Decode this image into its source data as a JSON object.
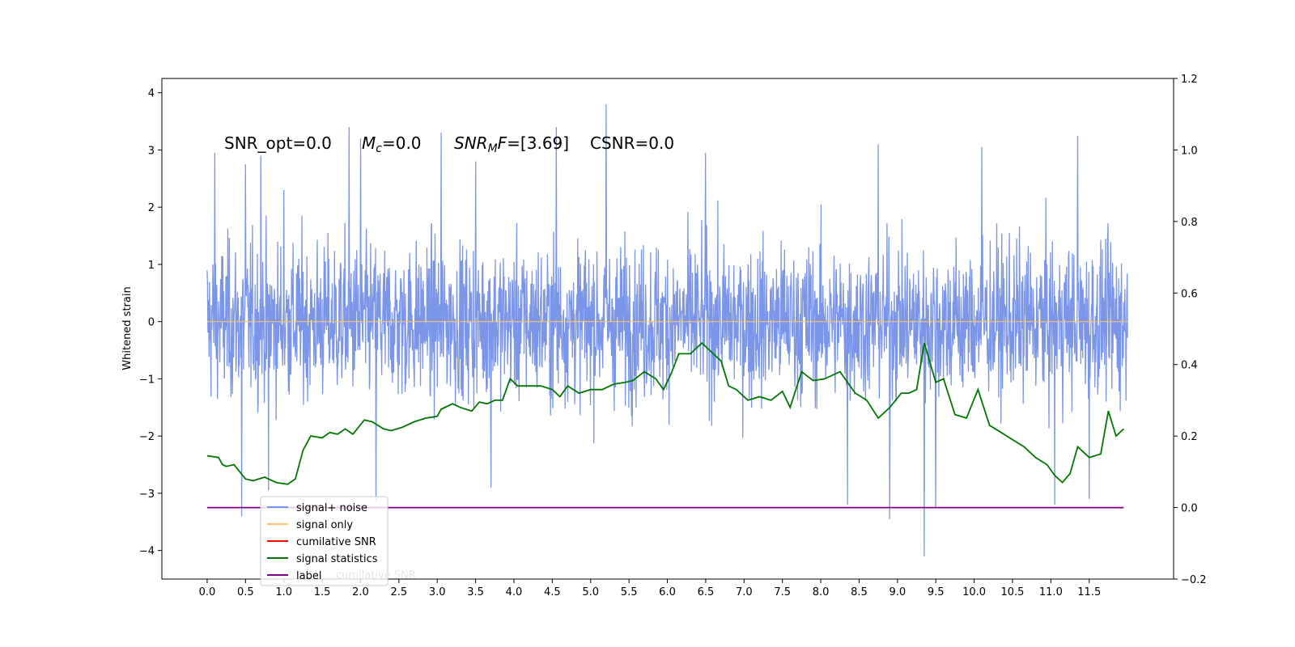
{
  "chart_data": {
    "type": "line",
    "annotation": {
      "snr_opt": "SNR_opt=0.0",
      "mc_symbol": "M",
      "mc_sub": "c",
      "mc_value": "=0.0",
      "snrmf_symbol": "SNR",
      "snrmf_sub": "M",
      "snrmf_F": "F",
      "snrmf_value": "=[3.69]",
      "csnr": "CSNR=0.0"
    },
    "ylabel": "Whitened strain",
    "xlim": [
      -0.59,
      12.6
    ],
    "ylim_left": [
      -4.5,
      4.25
    ],
    "ylim_right": [
      -0.2,
      1.2
    ],
    "x_ticks": [
      "0.0",
      "0.5",
      "1.0",
      "1.5",
      "2.0",
      "2.5",
      "3.0",
      "3.5",
      "4.0",
      "4.5",
      "5.0",
      "5.5",
      "6.0",
      "6.5",
      "7.0",
      "7.5",
      "8.0",
      "8.5",
      "9.0",
      "9.5",
      "10.0",
      "10.5",
      "11.0",
      "11.5"
    ],
    "x_tick_values": [
      0,
      0.5,
      1,
      1.5,
      2,
      2.5,
      3,
      3.5,
      4,
      4.5,
      5,
      5.5,
      6,
      6.5,
      7,
      7.5,
      8,
      8.5,
      9,
      9.5,
      10,
      10.5,
      11,
      11.5
    ],
    "y_left_ticks": [
      4,
      3,
      2,
      1,
      0,
      -1,
      -2,
      -3,
      -4
    ],
    "y_right_ticks": [
      "1.2",
      "1.0",
      "0.8",
      "0.6",
      "0.4",
      "0.2",
      "0.0",
      "−0.2"
    ],
    "y_right_tick_values": [
      1.2,
      1.0,
      0.8,
      0.6,
      0.4,
      0.2,
      0.0,
      -0.2
    ],
    "left_tick_labels": [
      "4",
      "3",
      "2",
      "1",
      "0",
      "−1",
      "−2",
      "−3",
      "−4"
    ],
    "legend": {
      "placement": "lower-left",
      "entries": [
        {
          "label": "signal+ noise",
          "color": "#7b96e8"
        },
        {
          "label": "signal only",
          "color": "#ffc266"
        },
        {
          "label": "cumilative SNR",
          "color": "#ff0000"
        },
        {
          "label": "signal statistics",
          "color": "#007700"
        },
        {
          "label": "label",
          "color": "#800080"
        }
      ],
      "ghost_text": "cumilative SNR"
    },
    "series": [
      {
        "name": "signal+ noise",
        "color": "#7b96e8",
        "axis": "left",
        "x_range": [
          0,
          12
        ],
        "band": {
          "low": -1.4,
          "high": 1.4
        },
        "peaks_up": [
          [
            0.1,
            2.95
          ],
          [
            0.5,
            2.75
          ],
          [
            0.7,
            2.9
          ],
          [
            1.0,
            2.3
          ],
          [
            1.85,
            3.4
          ],
          [
            2.0,
            3.2
          ],
          [
            3.05,
            3.3
          ],
          [
            3.5,
            2.8
          ],
          [
            4.55,
            3.4
          ],
          [
            5.2,
            3.8
          ],
          [
            6.5,
            2.95
          ],
          [
            8.75,
            3.1
          ],
          [
            10.1,
            3.05
          ],
          [
            11.35,
            3.25
          ],
          [
            11.5,
            3.2
          ]
        ],
        "peaks_down": [
          [
            0.45,
            -3.4
          ],
          [
            0.8,
            -2.95
          ],
          [
            2.2,
            -3.15
          ],
          [
            3.7,
            -2.9
          ],
          [
            8.35,
            -3.2
          ],
          [
            8.9,
            -3.45
          ],
          [
            9.35,
            -4.1
          ],
          [
            9.5,
            -3.25
          ],
          [
            11.05,
            -3.2
          ],
          [
            11.5,
            -3.1
          ]
        ]
      },
      {
        "name": "signal only",
        "color": "#ffc266",
        "axis": "left",
        "x": [
          0,
          12
        ],
        "y": [
          0,
          0
        ]
      },
      {
        "name": "signal statistics",
        "color": "#007700",
        "axis": "right",
        "x": [
          0,
          0.15,
          0.2,
          0.25,
          0.35,
          0.5,
          0.6,
          0.75,
          0.9,
          1.05,
          1.15,
          1.25,
          1.35,
          1.5,
          1.6,
          1.7,
          1.8,
          1.9,
          2.05,
          2.15,
          2.3,
          2.4,
          2.55,
          2.7,
          2.85,
          3.0,
          3.05,
          3.2,
          3.3,
          3.45,
          3.55,
          3.65,
          3.75,
          3.85,
          3.95,
          4.05,
          4.2,
          4.35,
          4.5,
          4.6,
          4.7,
          4.85,
          5.0,
          5.15,
          5.3,
          5.45,
          5.55,
          5.7,
          5.85,
          5.95,
          6.05,
          6.15,
          6.3,
          6.45,
          6.55,
          6.7,
          6.8,
          6.9,
          7.05,
          7.2,
          7.35,
          7.5,
          7.6,
          7.75,
          7.9,
          8.05,
          8.25,
          8.45,
          8.6,
          8.75,
          8.9,
          9.05,
          9.15,
          9.25,
          9.35,
          9.5,
          9.6,
          9.75,
          9.9,
          10.05,
          10.2,
          10.35,
          10.5,
          10.65,
          10.8,
          10.95,
          11.05,
          11.15,
          11.25,
          11.35,
          11.5,
          11.65,
          11.75,
          11.85,
          11.95
        ],
        "y": [
          0.145,
          0.14,
          0.12,
          0.115,
          0.12,
          0.08,
          0.075,
          0.085,
          0.07,
          0.065,
          0.08,
          0.16,
          0.2,
          0.195,
          0.21,
          0.205,
          0.22,
          0.205,
          0.245,
          0.24,
          0.22,
          0.215,
          0.225,
          0.24,
          0.25,
          0.255,
          0.275,
          0.29,
          0.28,
          0.27,
          0.295,
          0.29,
          0.3,
          0.3,
          0.36,
          0.34,
          0.34,
          0.34,
          0.33,
          0.31,
          0.34,
          0.32,
          0.33,
          0.33,
          0.345,
          0.35,
          0.355,
          0.38,
          0.36,
          0.33,
          0.375,
          0.43,
          0.43,
          0.46,
          0.44,
          0.41,
          0.34,
          0.33,
          0.3,
          0.31,
          0.3,
          0.325,
          0.28,
          0.38,
          0.355,
          0.36,
          0.38,
          0.32,
          0.3,
          0.25,
          0.28,
          0.32,
          0.32,
          0.33,
          0.46,
          0.35,
          0.36,
          0.26,
          0.25,
          0.33,
          0.23,
          0.21,
          0.19,
          0.17,
          0.14,
          0.12,
          0.09,
          0.07,
          0.095,
          0.17,
          0.14,
          0.15,
          0.27,
          0.2,
          0.22
        ]
      },
      {
        "name": "label",
        "color": "#800080",
        "axis": "right",
        "x": [
          0,
          11.95
        ],
        "y": [
          0,
          0
        ]
      }
    ]
  }
}
